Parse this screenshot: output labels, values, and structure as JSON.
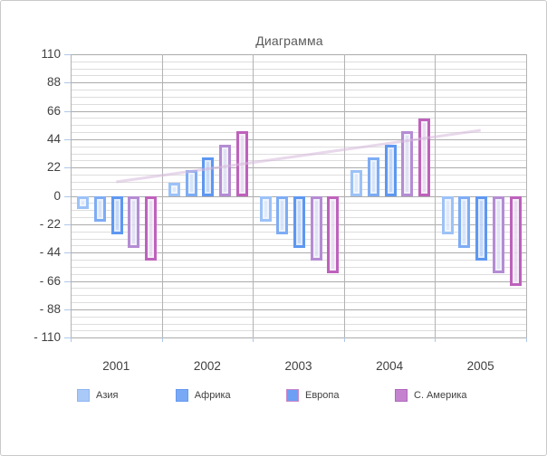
{
  "window": {
    "background": "#ffffff",
    "border_color": "#c9c9c9"
  },
  "chart_data": {
    "type": "bar",
    "title": "Диаграмма",
    "categories": [
      "2001",
      "2002",
      "2003",
      "2004",
      "2005"
    ],
    "series": [
      {
        "name": "Азия",
        "values": [
          -10,
          10,
          -20,
          20,
          -30
        ],
        "border_color": "#9cc2f7",
        "fill_color": "#dce6fa"
      },
      {
        "name": "Африка",
        "values": [
          -20,
          20,
          -30,
          30,
          -40
        ],
        "border_color": "#7eacf4",
        "fill_color": "#d2e0f8"
      },
      {
        "name": "Европа",
        "values": [
          -30,
          30,
          -40,
          40,
          -50
        ],
        "border_color": "#5e97f0",
        "fill_color": "#bcd2f7"
      },
      {
        "name": "",
        "values": [
          -40,
          40,
          -50,
          50,
          -60
        ],
        "border_color": "#b58cd3",
        "fill_color": "#dcddf2"
      },
      {
        "name": "С. Америка",
        "values": [
          -50,
          50,
          -60,
          60,
          -70
        ],
        "border_color": "#be62bc",
        "fill_color": "#e6d8ee"
      }
    ],
    "y_axis": {
      "min": -110,
      "max": 110,
      "major_unit": 22,
      "minor_unit": 5.5,
      "tick_labels": [
        "110",
        "88",
        "66",
        "44",
        "22",
        "0",
        "- 22",
        "- 44",
        "- 66",
        "- 88",
        "- 110"
      ],
      "tick_values": [
        110,
        88,
        66,
        44,
        22,
        0,
        -22,
        -44,
        -66,
        -88,
        -110
      ]
    },
    "trendline": {
      "start_value": 11,
      "end_value": 51,
      "color": "#d5b8da"
    },
    "legend": [
      {
        "label": "Азия",
        "fill": "#a9c9f8",
        "border": "#8fb6f2"
      },
      {
        "label": "Африка",
        "fill": "#79a8f5",
        "border": "#659af0"
      },
      {
        "label": "Европа",
        "fill": "#6d9ff5",
        "border": "#c987c9"
      },
      {
        "label": "С. Америка",
        "fill": "#c583cf",
        "border": "#af68bc"
      }
    ],
    "grid": {
      "major_color": "#ababab",
      "minor_color": "#dddddd",
      "vertical_color": "#b3b3b3",
      "tick_color": "#aec7e8"
    },
    "layout_hints": {
      "legend_position": "bottom",
      "grid": "on",
      "bar_fill_alpha": 0.85
    }
  }
}
